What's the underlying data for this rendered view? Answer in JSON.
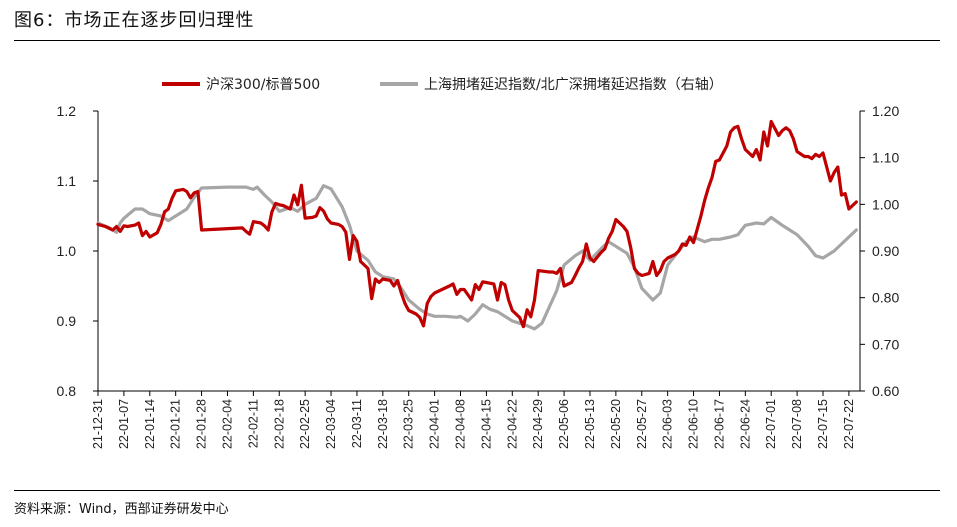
{
  "figure": {
    "title": "图6：市场正在逐步回归理性",
    "source": "资料来源：Wind，西部证券研发中心"
  },
  "colors": {
    "series_red": "#c00000",
    "series_gray": "#a6a6a6",
    "axis": "#000000"
  },
  "chart_data": {
    "type": "line",
    "title": "",
    "xlabel": "",
    "ylabel": "",
    "y_left": {
      "lim": [
        0.8,
        1.2
      ],
      "ticks": [
        0.8,
        0.9,
        1.0,
        1.1,
        1.2
      ],
      "tick_labels": [
        "0.8",
        "0.9",
        "1.0",
        "1.1",
        "1.2"
      ]
    },
    "y_right": {
      "lim": [
        0.6,
        1.2
      ],
      "ticks": [
        0.6,
        0.7,
        0.8,
        0.9,
        1.0,
        1.1,
        1.2
      ],
      "tick_labels": [
        "0.60",
        "0.70",
        "0.80",
        "0.90",
        "1.00",
        "1.10",
        "1.20"
      ]
    },
    "x": {
      "start": "21-12-31",
      "end": "22-07-25",
      "tick_labels": [
        "21-12-31",
        "22-01-07",
        "22-01-14",
        "22-01-21",
        "22-01-28",
        "22-02-04",
        "22-02-11",
        "22-02-18",
        "22-02-25",
        "22-03-04",
        "22-03-11",
        "22-03-18",
        "22-03-25",
        "22-04-01",
        "22-04-08",
        "22-04-15",
        "22-04-22",
        "22-04-29",
        "22-05-06",
        "22-05-13",
        "22-05-20",
        "22-05-27",
        "22-06-03",
        "22-06-10",
        "22-06-17",
        "22-06-24",
        "22-07-01",
        "22-07-08",
        "22-07-15",
        "22-07-22"
      ]
    },
    "legend": {
      "position": "top"
    },
    "grid": false,
    "series": [
      {
        "name": "沪深300/标普500",
        "axis": "left",
        "points": [
          [
            "21-12-31",
            1.038
          ],
          [
            "22-01-02",
            1.035
          ],
          [
            "22-01-04",
            1.03
          ],
          [
            "22-01-05",
            1.035
          ],
          [
            "22-01-06",
            1.028
          ],
          [
            "22-01-07",
            1.036
          ],
          [
            "22-01-08",
            1.035
          ],
          [
            "22-01-10",
            1.037
          ],
          [
            "22-01-11",
            1.04
          ],
          [
            "22-01-12",
            1.022
          ],
          [
            "22-01-13",
            1.028
          ],
          [
            "22-01-14",
            1.02
          ],
          [
            "22-01-16",
            1.026
          ],
          [
            "22-01-17",
            1.038
          ],
          [
            "22-01-18",
            1.056
          ],
          [
            "22-01-19",
            1.06
          ],
          [
            "22-01-20",
            1.075
          ],
          [
            "22-01-21",
            1.086
          ],
          [
            "22-01-23",
            1.088
          ],
          [
            "22-01-24",
            1.085
          ],
          [
            "22-01-25",
            1.076
          ],
          [
            "22-01-26",
            1.083
          ],
          [
            "22-01-27",
            1.085
          ],
          [
            "22-01-28",
            1.03
          ],
          [
            "22-02-08",
            1.033
          ],
          [
            "22-02-09",
            1.028
          ],
          [
            "22-02-10",
            1.024
          ],
          [
            "22-02-11",
            1.042
          ],
          [
            "22-02-13",
            1.04
          ],
          [
            "22-02-14",
            1.036
          ],
          [
            "22-02-15",
            1.03
          ],
          [
            "22-02-16",
            1.056
          ],
          [
            "22-02-17",
            1.068
          ],
          [
            "22-02-18",
            1.066
          ],
          [
            "22-02-19",
            1.065
          ],
          [
            "22-02-21",
            1.06
          ],
          [
            "22-02-22",
            1.08
          ],
          [
            "22-02-23",
            1.066
          ],
          [
            "22-02-24",
            1.094
          ],
          [
            "22-02-25",
            1.047
          ],
          [
            "22-02-27",
            1.048
          ],
          [
            "22-02-28",
            1.05
          ],
          [
            "22-03-01",
            1.062
          ],
          [
            "22-03-02",
            1.057
          ],
          [
            "22-03-03",
            1.046
          ],
          [
            "22-03-04",
            1.04
          ],
          [
            "22-03-06",
            1.038
          ],
          [
            "22-03-07",
            1.035
          ],
          [
            "22-03-08",
            1.027
          ],
          [
            "22-03-09",
            0.988
          ],
          [
            "22-03-10",
            1.022
          ],
          [
            "22-03-11",
            1.014
          ],
          [
            "22-03-12",
            0.985
          ],
          [
            "22-03-14",
            0.975
          ],
          [
            "22-03-15",
            0.932
          ],
          [
            "22-03-16",
            0.96
          ],
          [
            "22-03-17",
            0.955
          ],
          [
            "22-03-18",
            0.96
          ],
          [
            "22-03-20",
            0.958
          ],
          [
            "22-03-21",
            0.95
          ],
          [
            "22-03-22",
            0.958
          ],
          [
            "22-03-23",
            0.94
          ],
          [
            "22-03-24",
            0.925
          ],
          [
            "22-03-25",
            0.915
          ],
          [
            "22-03-27",
            0.91
          ],
          [
            "22-03-28",
            0.905
          ],
          [
            "22-03-29",
            0.893
          ],
          [
            "22-03-30",
            0.925
          ],
          [
            "22-03-31",
            0.935
          ],
          [
            "22-04-01",
            0.94
          ],
          [
            "22-04-05",
            0.95
          ],
          [
            "22-04-06",
            0.953
          ],
          [
            "22-04-07",
            0.938
          ],
          [
            "22-04-08",
            0.945
          ],
          [
            "22-04-09",
            0.945
          ],
          [
            "22-04-11",
            0.93
          ],
          [
            "22-04-12",
            0.952
          ],
          [
            "22-04-13",
            0.945
          ],
          [
            "22-04-14",
            0.956
          ],
          [
            "22-04-15",
            0.955
          ],
          [
            "22-04-17",
            0.953
          ],
          [
            "22-04-18",
            0.93
          ],
          [
            "22-04-19",
            0.955
          ],
          [
            "22-04-20",
            0.952
          ],
          [
            "22-04-21",
            0.93
          ],
          [
            "22-04-22",
            0.915
          ],
          [
            "22-04-24",
            0.905
          ],
          [
            "22-04-25",
            0.892
          ],
          [
            "22-04-26",
            0.916
          ],
          [
            "22-04-27",
            0.906
          ],
          [
            "22-04-28",
            0.93
          ],
          [
            "22-04-29",
            0.972
          ],
          [
            "22-05-02",
            0.97
          ],
          [
            "22-05-03",
            0.97
          ],
          [
            "22-05-04",
            0.968
          ],
          [
            "22-05-05",
            0.975
          ],
          [
            "22-05-06",
            0.95
          ],
          [
            "22-05-08",
            0.955
          ],
          [
            "22-05-09",
            0.965
          ],
          [
            "22-05-10",
            0.976
          ],
          [
            "22-05-11",
            0.985
          ],
          [
            "22-05-12",
            1.01
          ],
          [
            "22-05-13",
            0.99
          ],
          [
            "22-05-14",
            0.985
          ],
          [
            "22-05-16",
            0.998
          ],
          [
            "22-05-17",
            1.003
          ],
          [
            "22-05-18",
            1.018
          ],
          [
            "22-05-19",
            1.028
          ],
          [
            "22-05-20",
            1.045
          ],
          [
            "22-05-22",
            1.035
          ],
          [
            "22-05-23",
            1.028
          ],
          [
            "22-05-24",
            1.005
          ],
          [
            "22-05-25",
            0.975
          ],
          [
            "22-05-26",
            0.968
          ],
          [
            "22-05-27",
            0.965
          ],
          [
            "22-05-29",
            0.968
          ],
          [
            "22-05-30",
            0.985
          ],
          [
            "22-05-31",
            0.965
          ],
          [
            "22-06-01",
            0.972
          ],
          [
            "22-06-02",
            0.985
          ],
          [
            "22-06-03",
            0.99
          ],
          [
            "22-06-05",
            0.995
          ],
          [
            "22-06-06",
            1.0
          ],
          [
            "22-06-07",
            1.01
          ],
          [
            "22-06-08",
            1.008
          ],
          [
            "22-06-09",
            1.02
          ],
          [
            "22-06-10",
            1.012
          ],
          [
            "22-06-12",
            1.05
          ],
          [
            "22-06-13",
            1.072
          ],
          [
            "22-06-14",
            1.09
          ],
          [
            "22-06-15",
            1.105
          ],
          [
            "22-06-16",
            1.128
          ],
          [
            "22-06-17",
            1.13
          ],
          [
            "22-06-19",
            1.15
          ],
          [
            "22-06-20",
            1.17
          ],
          [
            "22-06-21",
            1.176
          ],
          [
            "22-06-22",
            1.178
          ],
          [
            "22-06-23",
            1.16
          ],
          [
            "22-06-24",
            1.145
          ],
          [
            "22-06-26",
            1.135
          ],
          [
            "22-06-27",
            1.145
          ],
          [
            "22-06-28",
            1.13
          ],
          [
            "22-06-29",
            1.17
          ],
          [
            "22-06-30",
            1.15
          ],
          [
            "22-07-01",
            1.185
          ],
          [
            "22-07-03",
            1.165
          ],
          [
            "22-07-04",
            1.172
          ],
          [
            "22-07-05",
            1.176
          ],
          [
            "22-07-06",
            1.172
          ],
          [
            "22-07-07",
            1.16
          ],
          [
            "22-07-08",
            1.142
          ],
          [
            "22-07-10",
            1.135
          ],
          [
            "22-07-11",
            1.135
          ],
          [
            "22-07-12",
            1.132
          ],
          [
            "22-07-13",
            1.138
          ],
          [
            "22-07-14",
            1.135
          ],
          [
            "22-07-15",
            1.14
          ],
          [
            "22-07-17",
            1.1
          ],
          [
            "22-07-18",
            1.112
          ],
          [
            "22-07-19",
            1.12
          ],
          [
            "22-07-20",
            1.08
          ],
          [
            "22-07-21",
            1.082
          ],
          [
            "22-07-22",
            1.06
          ],
          [
            "22-07-24",
            1.07
          ]
        ]
      },
      {
        "name": "上海拥堵延迟指数/北广深拥堵延迟指数（右轴）",
        "axis": "right",
        "points": [
          [
            "21-12-31",
            0.96
          ],
          [
            "22-01-03",
            0.95
          ],
          [
            "22-01-05",
            0.94
          ],
          [
            "22-01-06",
            0.96
          ],
          [
            "22-01-07",
            0.97
          ],
          [
            "22-01-10",
            0.99
          ],
          [
            "22-01-12",
            0.99
          ],
          [
            "22-01-14",
            0.98
          ],
          [
            "22-01-17",
            0.975
          ],
          [
            "22-01-19",
            0.965
          ],
          [
            "22-01-21",
            0.975
          ],
          [
            "22-01-24",
            0.99
          ],
          [
            "22-01-26",
            1.015
          ],
          [
            "22-01-28",
            1.035
          ],
          [
            "22-02-04",
            1.037
          ],
          [
            "22-02-09",
            1.037
          ],
          [
            "22-02-11",
            1.032
          ],
          [
            "22-02-12",
            1.037
          ],
          [
            "22-02-14",
            1.02
          ],
          [
            "22-02-16",
            1.005
          ],
          [
            "22-02-18",
            0.985
          ],
          [
            "22-02-21",
            0.993
          ],
          [
            "22-02-23",
            0.985
          ],
          [
            "22-02-25",
            1.0
          ],
          [
            "22-02-28",
            1.013
          ],
          [
            "22-03-02",
            1.04
          ],
          [
            "22-03-04",
            1.033
          ],
          [
            "22-03-07",
            0.995
          ],
          [
            "22-03-09",
            0.955
          ],
          [
            "22-03-11",
            0.9
          ],
          [
            "22-03-14",
            0.88
          ],
          [
            "22-03-16",
            0.855
          ],
          [
            "22-03-18",
            0.845
          ],
          [
            "22-03-21",
            0.84
          ],
          [
            "22-03-23",
            0.82
          ],
          [
            "22-03-25",
            0.795
          ],
          [
            "22-03-28",
            0.775
          ],
          [
            "22-03-30",
            0.765
          ],
          [
            "22-04-01",
            0.76
          ],
          [
            "22-04-04",
            0.76
          ],
          [
            "22-04-07",
            0.758
          ],
          [
            "22-04-08",
            0.76
          ],
          [
            "22-04-10",
            0.75
          ],
          [
            "22-04-12",
            0.765
          ],
          [
            "22-04-14",
            0.785
          ],
          [
            "22-04-16",
            0.775
          ],
          [
            "22-04-18",
            0.77
          ],
          [
            "22-04-20",
            0.76
          ],
          [
            "22-04-22",
            0.75
          ],
          [
            "22-04-24",
            0.745
          ],
          [
            "22-04-26",
            0.74
          ],
          [
            "22-04-28",
            0.733
          ],
          [
            "22-04-30",
            0.745
          ],
          [
            "22-05-02",
            0.78
          ],
          [
            "22-05-04",
            0.815
          ],
          [
            "22-05-06",
            0.87
          ],
          [
            "22-05-09",
            0.89
          ],
          [
            "22-05-11",
            0.9
          ],
          [
            "22-05-13",
            0.88
          ],
          [
            "22-05-16",
            0.905
          ],
          [
            "22-05-18",
            0.92
          ],
          [
            "22-05-20",
            0.91
          ],
          [
            "22-05-23",
            0.895
          ],
          [
            "22-05-25",
            0.865
          ],
          [
            "22-05-27",
            0.82
          ],
          [
            "22-05-30",
            0.795
          ],
          [
            "22-06-01",
            0.81
          ],
          [
            "22-06-03",
            0.87
          ],
          [
            "22-06-06",
            0.9
          ],
          [
            "22-06-08",
            0.92
          ],
          [
            "22-06-10",
            0.93
          ],
          [
            "22-06-13",
            0.92
          ],
          [
            "22-06-15",
            0.925
          ],
          [
            "22-06-17",
            0.925
          ],
          [
            "22-06-20",
            0.93
          ],
          [
            "22-06-22",
            0.935
          ],
          [
            "22-06-24",
            0.955
          ],
          [
            "22-06-27",
            0.96
          ],
          [
            "22-06-29",
            0.958
          ],
          [
            "22-07-01",
            0.972
          ],
          [
            "22-07-04",
            0.955
          ],
          [
            "22-07-06",
            0.945
          ],
          [
            "22-07-08",
            0.935
          ],
          [
            "22-07-11",
            0.91
          ],
          [
            "22-07-13",
            0.89
          ],
          [
            "22-07-15",
            0.885
          ],
          [
            "22-07-18",
            0.9
          ],
          [
            "22-07-20",
            0.915
          ],
          [
            "22-07-22",
            0.93
          ],
          [
            "22-07-24",
            0.945
          ]
        ]
      }
    ]
  }
}
